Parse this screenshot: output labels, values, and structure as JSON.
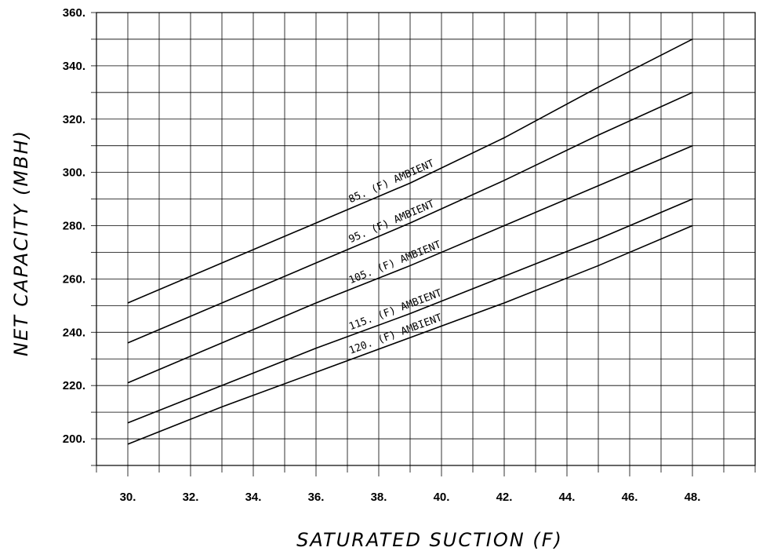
{
  "chart_data": {
    "type": "line",
    "xlabel": "SATURATED SUCTION (F)",
    "ylabel": "NET CAPACITY (MBH)",
    "xlim": [
      29,
      50
    ],
    "ylim": [
      190,
      360
    ],
    "x_ticks": [
      30,
      32,
      34,
      36,
      38,
      40,
      42,
      44,
      46,
      48
    ],
    "x_tick_labels": [
      "30.",
      "32.",
      "34.",
      "36.",
      "38.",
      "40.",
      "42.",
      "44.",
      "46.",
      "48."
    ],
    "y_ticks": [
      200,
      220,
      240,
      260,
      280,
      300,
      320,
      340,
      360
    ],
    "y_tick_labels": [
      "200.",
      "220.",
      "240.",
      "260.",
      "280.",
      "300.",
      "320.",
      "340.",
      "360."
    ],
    "grid": true,
    "series": [
      {
        "name": "85. (F) AMBIENT",
        "x": [
          30,
          33,
          36,
          39,
          42,
          45,
          48
        ],
        "values": [
          251,
          266,
          281,
          296,
          313,
          332,
          350
        ]
      },
      {
        "name": "95. (F) AMBIENT",
        "x": [
          30,
          33,
          36,
          39,
          42,
          45,
          48
        ],
        "values": [
          236,
          251,
          266,
          281,
          297,
          314,
          330
        ]
      },
      {
        "name": "105. (F) AMBIENT",
        "x": [
          30,
          33,
          36,
          39,
          42,
          45,
          48
        ],
        "values": [
          221,
          236,
          251,
          265,
          280,
          295,
          310
        ]
      },
      {
        "name": "115. (F) AMBIENT",
        "x": [
          30,
          33,
          36,
          39,
          42,
          45,
          48
        ],
        "values": [
          206,
          220,
          234,
          247,
          261,
          275,
          290
        ]
      },
      {
        "name": "120. (F) AMBIENT",
        "x": [
          30,
          33,
          36,
          39,
          42,
          45,
          48
        ],
        "values": [
          198,
          212,
          225,
          238,
          251,
          265,
          280
        ]
      }
    ]
  }
}
